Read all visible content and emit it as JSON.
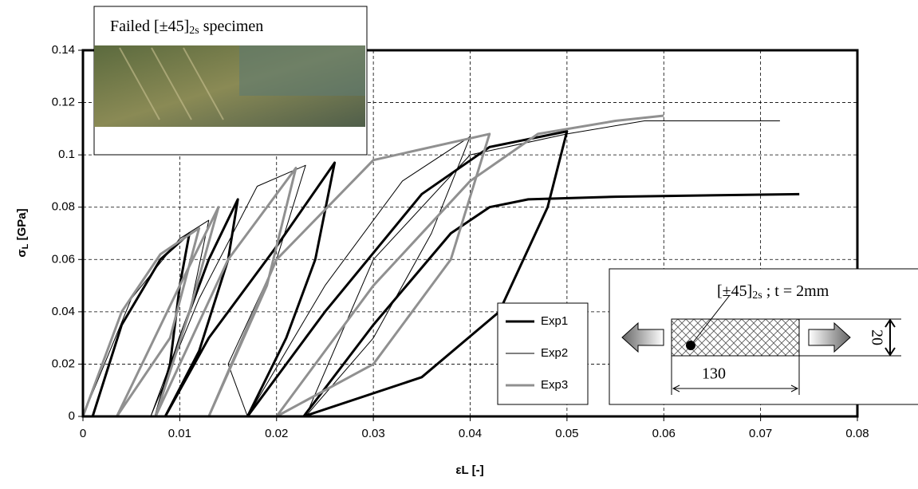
{
  "chart_data": {
    "type": "line",
    "x_label": [
      "εL [-]"
    ],
    "y_label": [
      "σ",
      "L",
      " [GPa]"
    ],
    "xlim": [
      0,
      0.08
    ],
    "xticks": [
      0,
      0.01,
      0.02,
      0.03,
      0.04,
      0.05,
      0.06,
      0.07,
      0.08
    ],
    "ylim": [
      0,
      0.14
    ],
    "yticks": [
      0,
      0.02,
      0.04,
      0.06,
      0.08,
      0.1,
      0.12,
      0.14
    ],
    "grid": true,
    "legend": "bottom-center",
    "photo_caption": [
      "Failed [±45]",
      "2s",
      " specimen"
    ],
    "specimen_label": [
      "[±45]",
      "2s",
      " ; t = 2mm"
    ],
    "specimen_length": "130",
    "specimen_width": "20",
    "series": [
      {
        "name": "Exp1",
        "color": "#000000",
        "width": 3,
        "x": [
          0.001,
          0.004,
          0.008,
          0.011,
          0.01,
          0.009,
          0.0075,
          0.01,
          0.013,
          0.016,
          0.015,
          0.012,
          0.0085,
          0.013,
          0.02,
          0.026,
          0.024,
          0.021,
          0.017,
          0.025,
          0.035,
          0.042,
          0.05,
          0.048,
          0.043,
          0.035,
          0.0228,
          0.03,
          0.038,
          0.042,
          0.046,
          0.055,
          0.074
        ],
        "values": [
          0,
          0.035,
          0.06,
          0.07,
          0.05,
          0.02,
          0,
          0.03,
          0.06,
          0.083,
          0.06,
          0.025,
          0,
          0.03,
          0.065,
          0.097,
          0.06,
          0.03,
          0,
          0.04,
          0.085,
          0.103,
          0.109,
          0.08,
          0.04,
          0.015,
          0,
          0.035,
          0.07,
          0.08,
          0.083,
          0.084,
          0.085
        ]
      },
      {
        "name": "Exp2",
        "color": "#000000",
        "width": 1,
        "x": [
          0,
          0.005,
          0.01,
          0.013,
          0.011,
          0.007,
          0.012,
          0.018,
          0.023,
          0.02,
          0.015,
          0.017,
          0.025,
          0.033,
          0.04,
          0.036,
          0.03,
          0.023,
          0.03,
          0.04,
          0.05,
          0.058,
          0.06,
          0.072
        ],
        "values": [
          0,
          0.045,
          0.068,
          0.075,
          0.04,
          0,
          0.045,
          0.088,
          0.096,
          0.06,
          0.02,
          0,
          0.05,
          0.09,
          0.107,
          0.07,
          0.03,
          0,
          0.06,
          0.1,
          0.108,
          0.113,
          0.113,
          0.113
        ]
      },
      {
        "name": "Exp3",
        "color": "#909090",
        "width": 3,
        "x": [
          0,
          0.004,
          0.008,
          0.012,
          0.009,
          0.0035,
          0.01,
          0.014,
          0.011,
          0.0075,
          0.015,
          0.022,
          0.019,
          0.013,
          0.02,
          0.03,
          0.042,
          0.038,
          0.03,
          0.02,
          0.03,
          0.04,
          0.047,
          0.055,
          0.06
        ],
        "values": [
          0,
          0.04,
          0.062,
          0.072,
          0.03,
          0,
          0.05,
          0.08,
          0.04,
          0,
          0.06,
          0.095,
          0.05,
          0,
          0.06,
          0.098,
          0.108,
          0.06,
          0.02,
          0,
          0.05,
          0.09,
          0.108,
          0.113,
          0.115
        ]
      }
    ]
  }
}
